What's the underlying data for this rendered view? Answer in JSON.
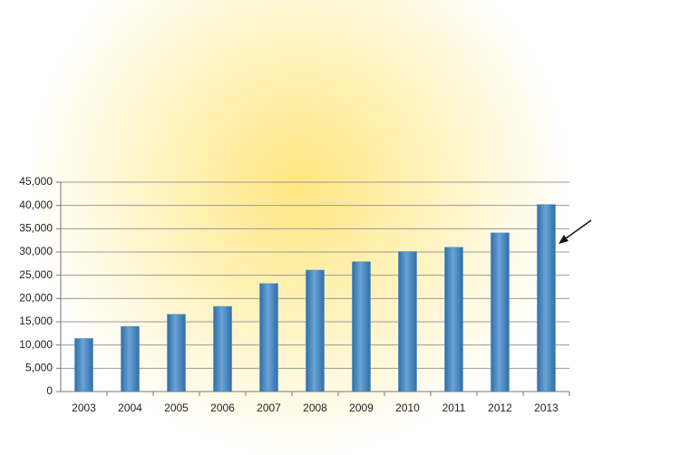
{
  "chart_data": {
    "type": "bar",
    "categories": [
      "2003",
      "2004",
      "2005",
      "2006",
      "2007",
      "2008",
      "2009",
      "2010",
      "2011",
      "2012",
      "2013"
    ],
    "values": [
      11400,
      14000,
      16600,
      18300,
      23200,
      26100,
      27900,
      30100,
      31000,
      34100,
      40200
    ],
    "color": "#4a86c0",
    "ylim": [
      0,
      45000
    ],
    "yticks": [
      0,
      {
        "value": 5000,
        "label": "5,000"
      },
      {
        "value": 10000,
        "label": "10,000"
      },
      {
        "value": 15000,
        "label": "15,000"
      },
      {
        "value": 20000,
        "label": "20,000"
      },
      {
        "value": 25000,
        "label": "25,000"
      },
      {
        "value": 30000,
        "label": "30,000"
      },
      {
        "value": 35000,
        "label": "35,000"
      },
      {
        "value": 40000,
        "label": "40,000"
      },
      {
        "value": 45000,
        "label": "45,000"
      }
    ],
    "grid": true
  }
}
